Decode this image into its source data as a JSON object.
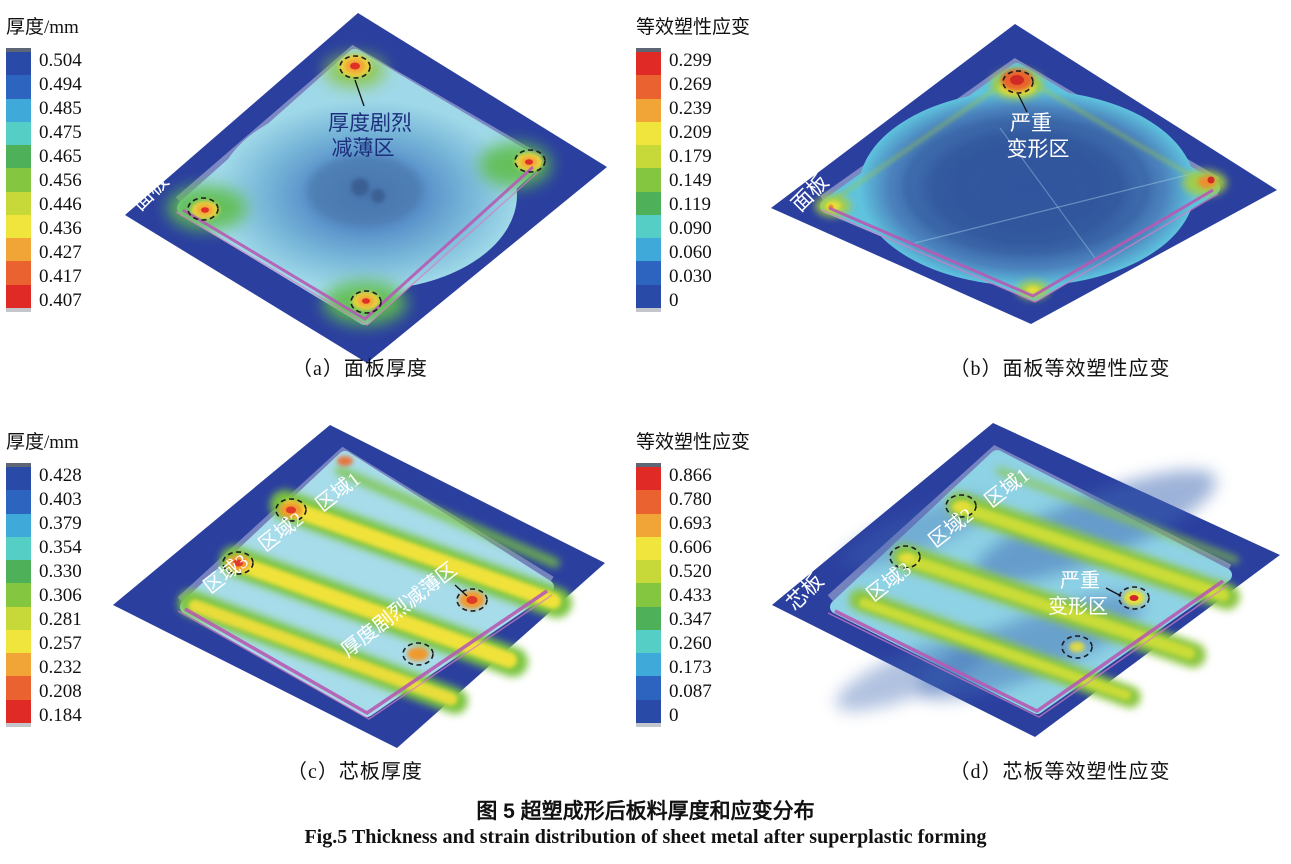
{
  "figure": {
    "title_zh": "图 5  超塑成形后板料厚度和应变分布",
    "title_en": "Fig.5  Thickness and strain distribution of sheet metal after superplastic forming"
  },
  "palette_note": "colorbars run through 11 discrete bands",
  "panels": [
    {
      "id": "a",
      "caption": "（a）面板厚度",
      "plate_label": "面板",
      "callout": {
        "line1": "厚度剧烈",
        "line2": "减薄区"
      },
      "legend": {
        "title": "厚度/mm",
        "labels": [
          "0.504",
          "0.494",
          "0.485",
          "0.475",
          "0.465",
          "0.456",
          "0.446",
          "0.436",
          "0.427",
          "0.417",
          "0.407"
        ],
        "colors": [
          "#2a4aa8",
          "#2d64c0",
          "#3fa9da",
          "#55cec5",
          "#4fb05a",
          "#84c63f",
          "#c6d938",
          "#f0e53c",
          "#f2a537",
          "#ea6230",
          "#e02a26"
        ]
      }
    },
    {
      "id": "b",
      "caption": "（b）面板等效塑性应变",
      "plate_label": "面板",
      "callout": {
        "line1": "严重",
        "line2": "变形区"
      },
      "legend": {
        "title": "等效塑性应变",
        "labels": [
          "0.299",
          "0.269",
          "0.239",
          "0.209",
          "0.179",
          "0.149",
          "0.119",
          "0.090",
          "0.060",
          "0.030",
          "0"
        ],
        "colors": [
          "#e02a26",
          "#ea6230",
          "#f2a537",
          "#f0e53c",
          "#c6d938",
          "#84c63f",
          "#4fb05a",
          "#55cec5",
          "#3fa9da",
          "#2d64c0",
          "#2a4aa8"
        ]
      }
    },
    {
      "id": "c",
      "caption": "（c）芯板厚度",
      "plate_label": "芯板",
      "regions": [
        "区域1",
        "区域2",
        "区域3"
      ],
      "callout": {
        "line1": "厚度剧烈减薄区"
      },
      "legend": {
        "title": "厚度/mm",
        "labels": [
          "0.428",
          "0.403",
          "0.379",
          "0.354",
          "0.330",
          "0.306",
          "0.281",
          "0.257",
          "0.232",
          "0.208",
          "0.184"
        ],
        "colors": [
          "#2a4aa8",
          "#2d64c0",
          "#3fa9da",
          "#55cec5",
          "#4fb05a",
          "#84c63f",
          "#c6d938",
          "#f0e53c",
          "#f2a537",
          "#ea6230",
          "#e02a26"
        ]
      }
    },
    {
      "id": "d",
      "caption": "（d）芯板等效塑性应变",
      "plate_label": "芯板",
      "regions": [
        "区域1",
        "区域2",
        "区域3"
      ],
      "callout": {
        "line1": "严重",
        "line2": "变形区"
      },
      "legend": {
        "title": "等效塑性应变",
        "labels": [
          "0.866",
          "0.780",
          "0.693",
          "0.606",
          "0.520",
          "0.433",
          "0.347",
          "0.260",
          "0.173",
          "0.087",
          "0"
        ],
        "colors": [
          "#e02a26",
          "#ea6230",
          "#f2a537",
          "#f0e53c",
          "#c6d938",
          "#84c63f",
          "#4fb05a",
          "#55cec5",
          "#3fa9da",
          "#2d64c0",
          "#2a4aa8"
        ]
      }
    }
  ]
}
